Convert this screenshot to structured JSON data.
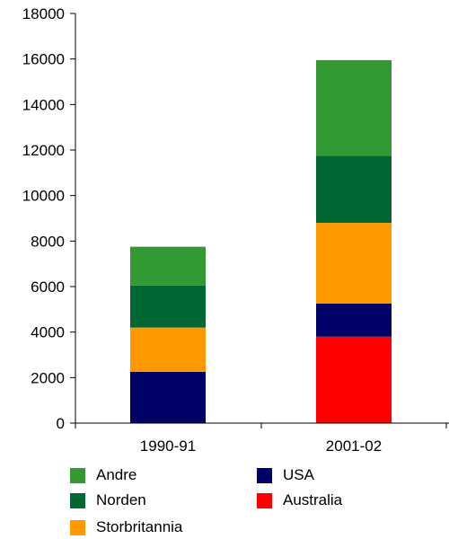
{
  "chart_data": {
    "type": "bar",
    "stacked": true,
    "title": "",
    "xlabel": "",
    "ylabel": "",
    "categories": [
      "1990-91",
      "2001-02"
    ],
    "ylim": [
      0,
      18000
    ],
    "yticks": [
      0,
      2000,
      4000,
      6000,
      8000,
      10000,
      12000,
      14000,
      16000,
      18000
    ],
    "grid": false,
    "legend_position": "bottom",
    "series": [
      {
        "name": "Australia",
        "color": "#ff0000",
        "values": [
          0,
          3800
        ]
      },
      {
        "name": "USA",
        "color": "#000066",
        "values": [
          2250,
          1450
        ]
      },
      {
        "name": "Storbritannia",
        "color": "#ff9900",
        "values": [
          1950,
          3550
        ]
      },
      {
        "name": "Norden",
        "color": "#006633",
        "values": [
          1850,
          2950
        ]
      },
      {
        "name": "Andre",
        "color": "#339933",
        "values": [
          1700,
          4200
        ]
      }
    ],
    "legend_order": [
      "Andre",
      "USA",
      "Norden",
      "Australia",
      "Storbritannia"
    ]
  }
}
